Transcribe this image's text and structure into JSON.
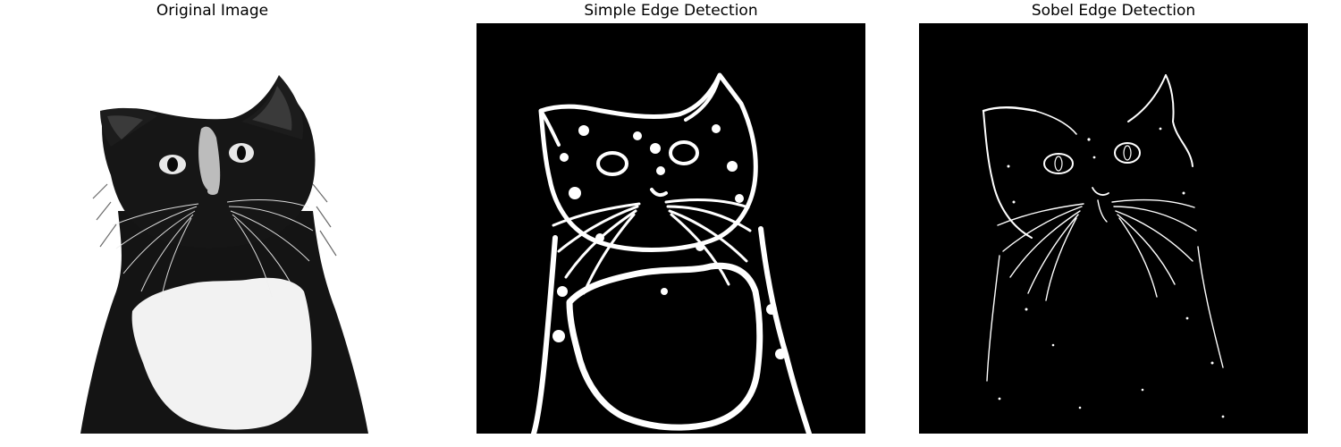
{
  "figure": {
    "panels": [
      {
        "title": "Original Image",
        "content": "grayscale photo of a black-and-white cat looking up"
      },
      {
        "title": "Simple Edge Detection",
        "content": "thresholded edge map, white edges on black"
      },
      {
        "title": "Sobel Edge Detection",
        "content": "thin white Sobel edges on black"
      }
    ]
  },
  "colors": {
    "background": "#ffffff",
    "edge_background": "#000000",
    "edge": "#ffffff",
    "fur_dark": "#141414",
    "fur_light": "#f2f2f2"
  }
}
